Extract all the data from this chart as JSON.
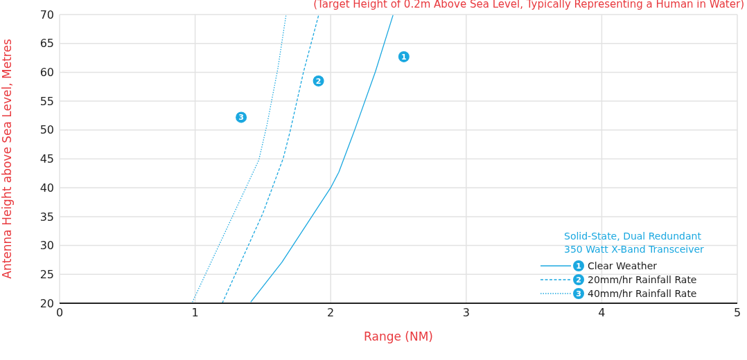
{
  "chart_data": {
    "type": "line",
    "subtitle": "(Target Height of 0.2m Above Sea Level, Typically Representing a Human in Water)",
    "xlabel": "Range (NM)",
    "ylabel": "Antenna Height above Sea Level, Metres",
    "legend_title": "Solid-State, Dual Redundant 350 Watt X-Band Transceiver",
    "xlim": [
      0,
      5
    ],
    "xticks": [
      0,
      1,
      2,
      3,
      4,
      5
    ],
    "ylim": [
      20,
      70
    ],
    "yticks": [
      20,
      25,
      30,
      35,
      40,
      45,
      50,
      55,
      60,
      65,
      70
    ],
    "grid": true,
    "legend": "bottom right",
    "marker": "none",
    "annotations": [
      {
        "text": "1",
        "x": 2.54,
        "y": 62.7
      },
      {
        "text": "2",
        "x": 1.91,
        "y": 58.5
      },
      {
        "text": "3",
        "x": 1.34,
        "y": 52.2
      }
    ],
    "series": [
      {
        "name": "Clear Weather",
        "color": "#1ba8e0",
        "line_style": "solid",
        "x": [
          1.41,
          1.64,
          2.0,
          2.06,
          2.18,
          2.33,
          2.46
        ],
        "values": [
          20.2,
          27.1,
          40,
          42.7,
          50.2,
          60.1,
          69.9
        ]
      },
      {
        "name": "20mm/hr Rainfall Rate",
        "color": "#1ba8e0",
        "line_style": "dashed",
        "x": [
          1.2,
          1.5,
          1.65,
          1.7,
          1.8,
          1.91
        ],
        "values": [
          20,
          35.6,
          45.1,
          49.7,
          60.1,
          69.8
        ]
      },
      {
        "name": "40mm/hr Rainfall Rate",
        "color": "#1ba8e0",
        "line_style": "dotted",
        "x": [
          0.98,
          1.47,
          1.53,
          1.61,
          1.67
        ],
        "values": [
          20.2,
          44.8,
          50.9,
          60.6,
          69.8
        ]
      }
    ]
  }
}
